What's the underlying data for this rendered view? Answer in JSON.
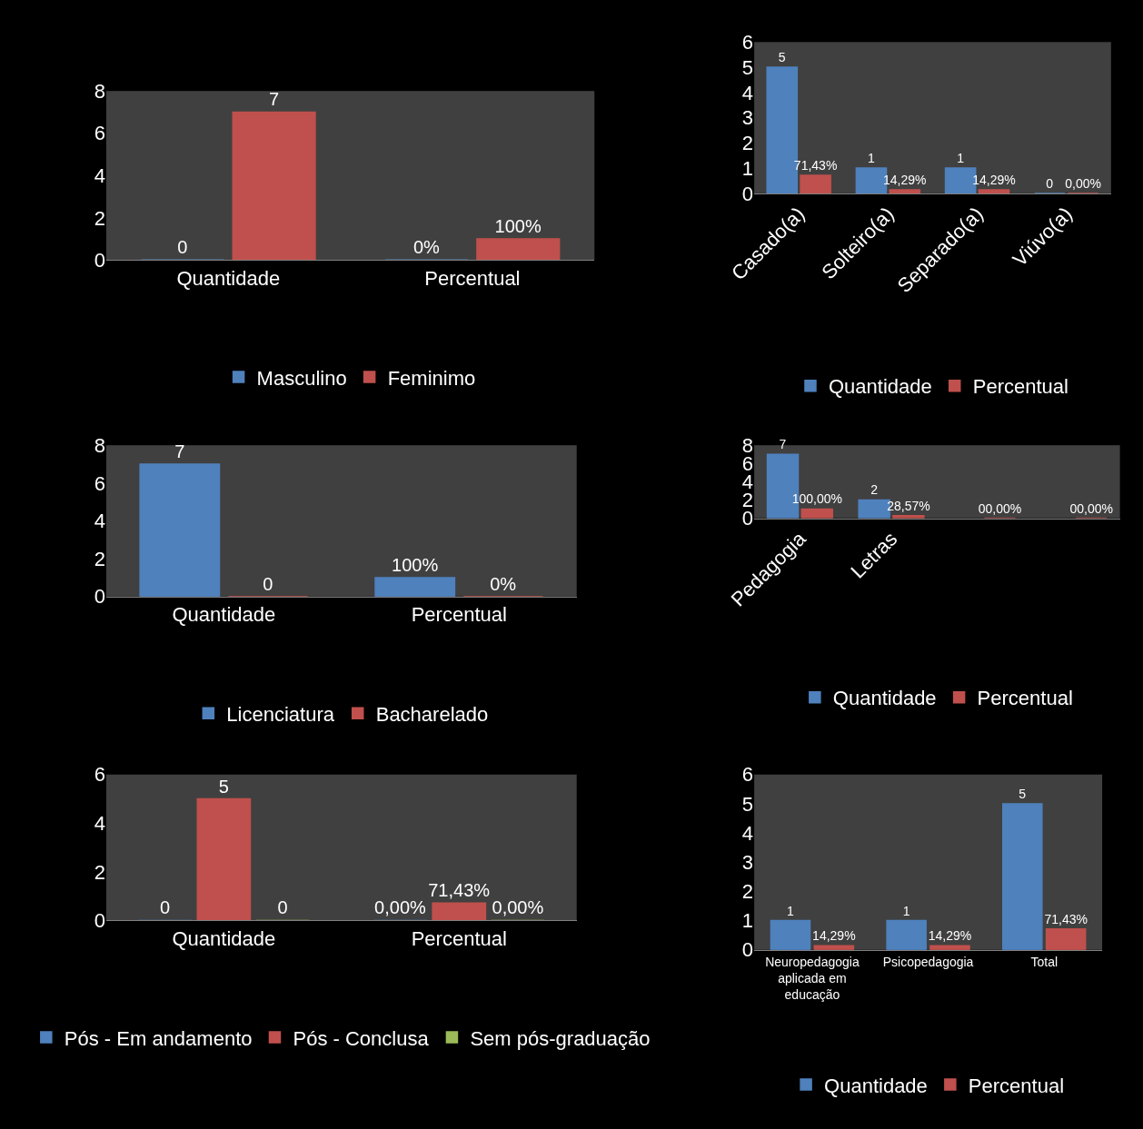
{
  "chart_data": [
    {
      "type": "bar",
      "categories": [
        "Quantidade",
        "Percentual"
      ],
      "ylim": [
        0,
        8
      ],
      "yticks": [
        0,
        2,
        4,
        6,
        8
      ],
      "legend": "bottom",
      "series": [
        {
          "name": "Masculino",
          "color": "#4f81bd",
          "values": [
            0,
            0
          ],
          "value_labels": [
            "0",
            "0%"
          ]
        },
        {
          "name": "Feminimo",
          "color": "#c0504d",
          "values": [
            7,
            1
          ],
          "value_labels": [
            "7",
            "100%"
          ]
        }
      ]
    },
    {
      "type": "bar",
      "categories": [
        "Casado(a)",
        "Solteiro(a)",
        "Separado(a)",
        "Viúvo(a)"
      ],
      "ylim": [
        0,
        6
      ],
      "yticks": [
        0,
        1,
        2,
        3,
        4,
        5,
        6
      ],
      "legend": "bottom",
      "series": [
        {
          "name": "Quantidade",
          "color": "#4f81bd",
          "values": [
            5,
            1,
            1,
            0
          ],
          "value_labels": [
            "5",
            "1",
            "1",
            "0"
          ]
        },
        {
          "name": "Percentual",
          "color": "#c0504d",
          "values": [
            0.7143,
            0.1429,
            0.1429,
            0
          ],
          "value_labels": [
            "71,43%",
            "14,29%",
            "14,29%",
            "0,00%"
          ]
        }
      ]
    },
    {
      "type": "bar",
      "categories": [
        "Quantidade",
        "Percentual"
      ],
      "ylim": [
        0,
        8
      ],
      "yticks": [
        0,
        2,
        4,
        6,
        8
      ],
      "legend": "bottom",
      "series": [
        {
          "name": "Licenciatura",
          "color": "#4f81bd",
          "values": [
            7,
            1
          ],
          "value_labels": [
            "7",
            "100%"
          ]
        },
        {
          "name": "Bacharelado",
          "color": "#c0504d",
          "values": [
            0,
            0
          ],
          "value_labels": [
            "0",
            "0%"
          ]
        }
      ]
    },
    {
      "type": "bar",
      "categories": [
        "Pedagogia",
        "Letras",
        null,
        null
      ],
      "ylim": [
        0,
        8
      ],
      "yticks": [
        0,
        2,
        4,
        6,
        8
      ],
      "legend": "bottom",
      "series": [
        {
          "name": "Quantidade",
          "color": "#4f81bd",
          "values": [
            7,
            2,
            null,
            null
          ],
          "value_labels": [
            "7",
            "2",
            null,
            null
          ]
        },
        {
          "name": "Percentual",
          "color": "#c0504d",
          "values": [
            1,
            0.2857,
            0,
            0
          ],
          "value_labels": [
            "100,00%",
            "28,57%",
            "00,00%",
            "00,00%"
          ]
        }
      ]
    },
    {
      "type": "bar",
      "categories": [
        "Quantidade",
        "Percentual"
      ],
      "ylim": [
        0,
        6
      ],
      "yticks": [
        0,
        2,
        4,
        6
      ],
      "legend": "bottom",
      "series": [
        {
          "name": "Pós - Em andamento",
          "color": "#4f81bd",
          "values": [
            0,
            0
          ],
          "value_labels": [
            "0",
            "0,00%"
          ]
        },
        {
          "name": "Pós - Conclusa",
          "color": "#c0504d",
          "values": [
            5,
            0.7143
          ],
          "value_labels": [
            "5",
            "71,43%"
          ]
        },
        {
          "name": "Sem pós-graduação",
          "color": "#9bbb59",
          "values": [
            0,
            0
          ],
          "value_labels": [
            "0",
            "0,00%"
          ]
        }
      ]
    },
    {
      "type": "bar",
      "categories": [
        "Neuropedagogia aplicada em educação",
        "Psicopedagogia",
        "Total"
      ],
      "ylim": [
        0,
        6
      ],
      "yticks": [
        0,
        1,
        2,
        3,
        4,
        5,
        6
      ],
      "legend": "bottom",
      "series": [
        {
          "name": "Quantidade",
          "color": "#4f81bd",
          "values": [
            1,
            1,
            5
          ],
          "value_labels": [
            "1",
            "1",
            "5"
          ]
        },
        {
          "name": "Percentual",
          "color": "#c0504d",
          "values": [
            0.1429,
            0.1429,
            0.7143
          ],
          "value_labels": [
            "14,29%",
            "14,29%",
            "71,43%"
          ]
        }
      ]
    }
  ]
}
